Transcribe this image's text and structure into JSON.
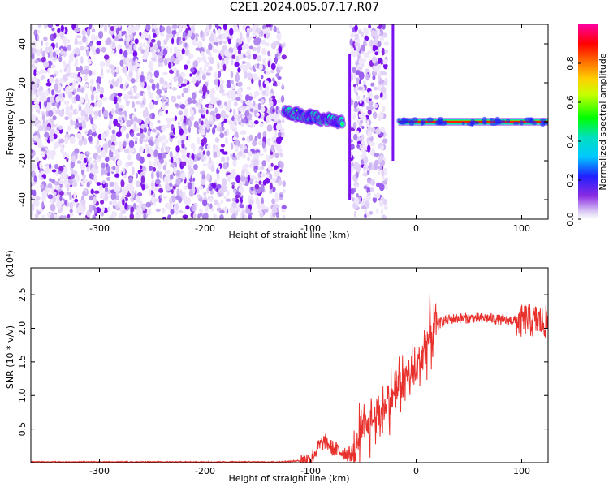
{
  "title": "C2E1.2024.005.07.17.R07",
  "chart_data": [
    {
      "type": "heatmap",
      "xlabel": "Height of straight line (km)",
      "ylabel": "Frequency (Hz)",
      "xlim": [
        -365,
        125
      ],
      "ylim": [
        -50,
        50
      ],
      "xticks": [
        -300,
        -200,
        -100,
        0,
        100
      ],
      "xtick_labels": [
        "-300",
        "-200",
        "-100",
        "0",
        "100"
      ],
      "yticks": [
        -40,
        -20,
        0,
        20,
        40
      ],
      "ytick_labels": [
        "-40",
        "-20",
        "0",
        "20",
        "40"
      ],
      "grid": false,
      "colorbar": {
        "label": "Normalized spectral amplitude",
        "range": [
          0,
          1
        ],
        "ticks": [
          0.0,
          0.2,
          0.4,
          0.6,
          0.8
        ],
        "tick_labels": [
          "0.0",
          "0.2",
          "0.4",
          "0.6",
          "0.8"
        ],
        "colormap": "rainbow (white-violet-blue-cyan-green-yellow-red-magenta)"
      },
      "regions": [
        {
          "x_range": [
            -365,
            -125
          ],
          "f_range": [
            -50,
            50
          ],
          "amplitude": 0.05,
          "description": "broadband noise"
        },
        {
          "x_range": [
            -125,
            -70
          ],
          "f_center": [
            5,
            0
          ],
          "amplitude": 0.3,
          "description": "emerging carrier"
        },
        {
          "x_range": [
            -62,
            -28
          ],
          "f_range": [
            -50,
            50
          ],
          "amplitude": 0.05,
          "description": "broadband noise"
        },
        {
          "x_range": [
            -17,
            125
          ],
          "f_center": [
            0,
            0
          ],
          "amplitude": 1.0,
          "description": "stable carrier"
        }
      ]
    },
    {
      "type": "line",
      "xlabel": "Height of straight line (km)",
      "ylabel": "SNR (10 * v/v)",
      "y_multiplier": "(x10⁴)",
      "xlim": [
        -365,
        125
      ],
      "ylim": [
        0,
        2.9
      ],
      "xticks": [
        -300,
        -200,
        -100,
        0,
        100
      ],
      "xtick_labels": [
        "-300",
        "-200",
        "-100",
        "0",
        "100"
      ],
      "yticks": [
        0.5,
        1.0,
        1.5,
        2.0,
        2.5
      ],
      "ytick_labels": [
        "0.5",
        "1.0",
        "1.5",
        "2.0",
        "2.5"
      ],
      "grid": false,
      "series": [
        {
          "color": "#e8302c",
          "x": [
            -365,
            -300,
            -200,
            -130,
            -110,
            -100,
            -92,
            -86,
            -80,
            -74,
            -68,
            -62,
            -56,
            -50,
            -45,
            -40,
            -35,
            -30,
            -25,
            -20,
            -15,
            -10,
            -5,
            0,
            5,
            10,
            15,
            20,
            25,
            30,
            40,
            50,
            60,
            70,
            80,
            90,
            100,
            105,
            110,
            115,
            120,
            125
          ],
          "y": [
            0.01,
            0.01,
            0.01,
            0.01,
            0.03,
            0.05,
            0.25,
            0.32,
            0.22,
            0.18,
            0.15,
            0.12,
            0.25,
            0.45,
            0.55,
            0.65,
            0.75,
            0.85,
            0.95,
            1.05,
            1.2,
            1.3,
            1.3,
            1.35,
            1.6,
            1.8,
            1.95,
            2.05,
            2.1,
            2.13,
            2.15,
            2.15,
            2.15,
            2.15,
            2.12,
            2.12,
            2.1,
            2.15,
            2.1,
            2.12,
            2.08,
            2.1
          ]
        }
      ]
    }
  ]
}
